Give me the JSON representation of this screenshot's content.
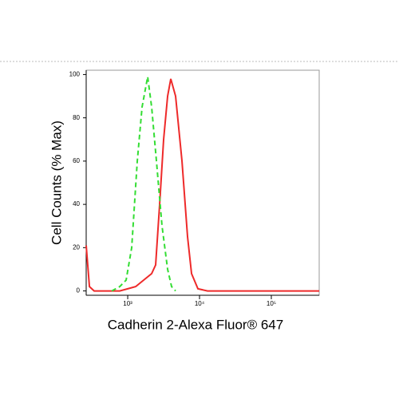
{
  "chart_data": {
    "type": "line",
    "x_label": "Cadherin 2-Alexa Fluor® 647",
    "y_label": "Cell Counts (% Max)",
    "x_log": true,
    "xlim": [
      264,
      464159
    ],
    "xticks": [
      {
        "value": 1000,
        "label": "10³"
      },
      {
        "value": 10000,
        "label": "10⁴"
      },
      {
        "value": 100000,
        "label": "10⁵"
      }
    ],
    "ylim": [
      -2,
      102
    ],
    "yticks": [
      0,
      20,
      40,
      60,
      80,
      100
    ],
    "series": [
      {
        "color": "#ee2a2a",
        "dash": false,
        "x": [
          264,
          293,
          341,
          464,
          774,
          1000,
          1292,
          1668,
          2154,
          2448,
          2783,
          3162,
          3594,
          3981,
          4642,
          5699,
          6813,
          7743,
          9502,
          12915,
          464159
        ],
        "values": [
          21,
          2,
          0,
          0,
          0,
          1,
          2,
          5,
          8,
          12,
          40,
          70,
          90,
          98,
          90,
          60,
          25,
          8,
          1,
          0,
          0
        ]
      },
      {
        "color": "#33dd33",
        "dash": true,
        "x": [
          599,
          774,
          950,
          1136,
          1359,
          1585,
          1896,
          2154,
          2512,
          3005,
          3594,
          4084,
          4642
        ],
        "values": [
          0,
          2,
          5,
          20,
          60,
          85,
          99,
          85,
          60,
          30,
          10,
          2,
          0
        ]
      }
    ]
  }
}
